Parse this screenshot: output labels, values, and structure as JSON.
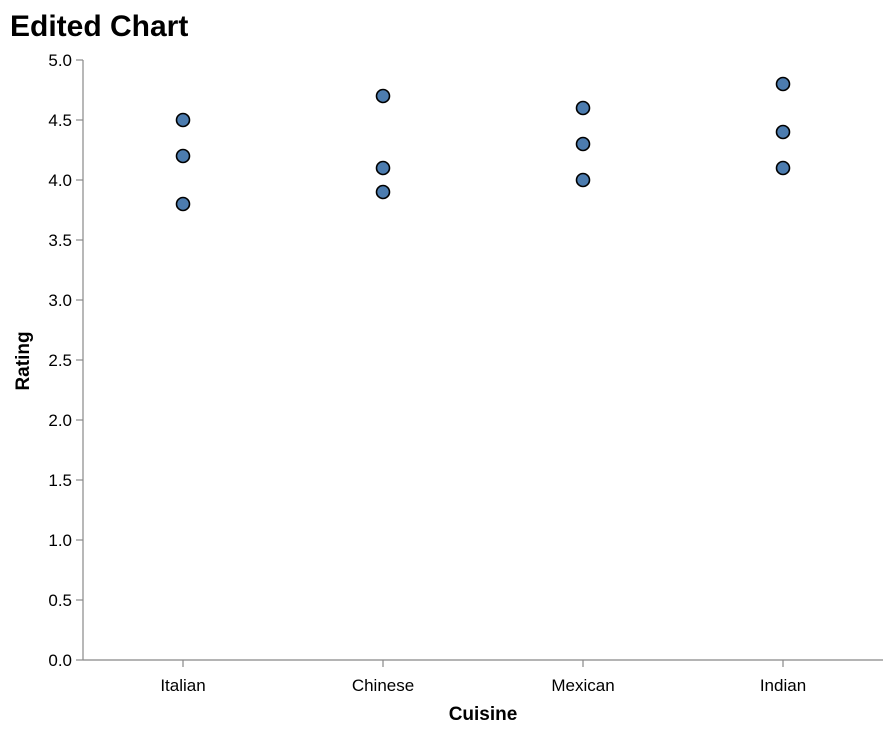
{
  "chart_data": {
    "type": "scatter",
    "title": "Edited Chart",
    "xlabel": "Cuisine",
    "ylabel": "Rating",
    "categories": [
      "Italian",
      "Chinese",
      "Mexican",
      "Indian"
    ],
    "points": [
      {
        "x": "Italian",
        "y": 4.5
      },
      {
        "x": "Italian",
        "y": 4.2
      },
      {
        "x": "Italian",
        "y": 3.8
      },
      {
        "x": "Chinese",
        "y": 4.7
      },
      {
        "x": "Chinese",
        "y": 4.1
      },
      {
        "x": "Chinese",
        "y": 3.9
      },
      {
        "x": "Mexican",
        "y": 4.6
      },
      {
        "x": "Mexican",
        "y": 4.3
      },
      {
        "x": "Mexican",
        "y": 4.0
      },
      {
        "x": "Indian",
        "y": 4.8
      },
      {
        "x": "Indian",
        "y": 4.4
      },
      {
        "x": "Indian",
        "y": 4.1
      }
    ],
    "ylim": [
      0,
      5
    ],
    "yticks": [
      "0.0",
      "0.5",
      "1.0",
      "1.5",
      "2.0",
      "2.5",
      "3.0",
      "3.5",
      "4.0",
      "4.5",
      "5.0"
    ],
    "grid": false,
    "point_color": "#4C7CAF"
  }
}
